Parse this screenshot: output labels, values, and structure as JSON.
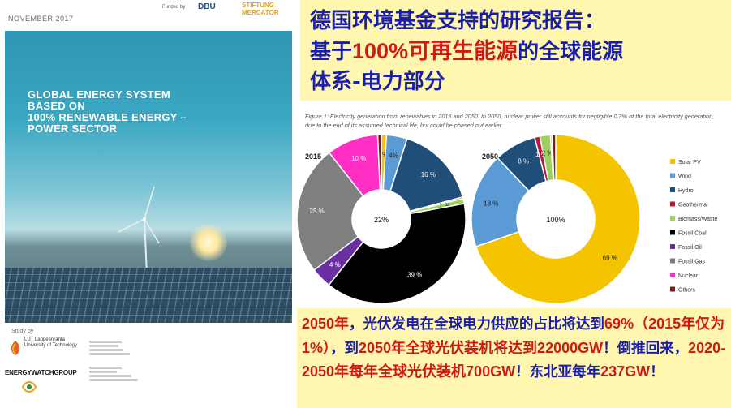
{
  "cover": {
    "date": "NOVEMBER 2017",
    "funded_by": "Funded by",
    "dbu": "DBU",
    "mercator": "STIFTUNG MERCATOR",
    "title_lines": [
      "GLOBAL ENERGY SYSTEM",
      "BASED ON",
      "100% RENEWABLE ENERGY –",
      "POWER SECTOR"
    ],
    "study_by": "Study by",
    "lut": "LUT Lappeenranta University of Technology",
    "ewg": "ENERGYWATCHGROUP"
  },
  "headline": {
    "part1": "德国环境基金支持的研究报告：",
    "part2a": "基于",
    "part2b": "100%可再生能源",
    "part2c": "的全球能源",
    "part3": "体系-电力部分"
  },
  "summary": {
    "s1": "2050年",
    "s2": "，光伏发电在全球电力供应的占比将达到",
    "s3": "69%（2015年仅为1%）",
    "s4": "，到",
    "s5": "2050年全球光伏装机将达到22000GW",
    "s6": "！倒推回来，",
    "s7": "2020-2050年每年全球光伏装机700GW",
    "s8": "！东北亚每年",
    "s9": "237GW",
    "s10": "！"
  },
  "chart_data": [
    {
      "type": "pie",
      "title": "2015",
      "center_label": "22%",
      "caption": "Figure 1: Electricity generation from renewables in 2015 and 2050. In 2050, nuclear power still accounts for negligible 0.3% of the total electricity generation, due to the end of its assumed technical life, but could be phased out earlier",
      "slices": [
        {
          "name": "Solar PV",
          "value": 1,
          "label": "1%",
          "color": "#f5c400"
        },
        {
          "name": "Wind",
          "value": 4,
          "label": "4%",
          "color": "#5b9bd5"
        },
        {
          "name": "Hydro",
          "value": 16,
          "label": "16 %",
          "color": "#1f4e79"
        },
        {
          "name": "Geothermal",
          "value": 0.3,
          "label": "",
          "color": "#c0143c"
        },
        {
          "name": "Biomass/Waste",
          "value": 1,
          "label": "1 %",
          "color": "#9bd15a"
        },
        {
          "name": "Fossil Coal",
          "value": 39,
          "label": "39 %",
          "color": "#000000"
        },
        {
          "name": "Fossil Oil",
          "value": 4,
          "label": "4 %",
          "color": "#6a2fa0"
        },
        {
          "name": "Fossil Gas",
          "value": 25,
          "label": "25 %",
          "color": "#7f7f7f"
        },
        {
          "name": "Nuclear",
          "value": 10,
          "label": "10 %",
          "color": "#ff2ec4"
        },
        {
          "name": "Others",
          "value": 0.7,
          "label": "",
          "color": "#7b1c1c"
        }
      ],
      "legend": [
        "Solar PV",
        "Wind",
        "Hydro",
        "Geothermal",
        "Biomass/Waste",
        "Fossil Coal",
        "Fossil Oil",
        "Fossil Gas",
        "Nuclear",
        "Others"
      ],
      "legend_placement": "right"
    },
    {
      "type": "pie",
      "title": "2050",
      "center_label": "100%",
      "slices": [
        {
          "name": "Solar PV",
          "value": 69,
          "label": "69 %",
          "color": "#f5c400"
        },
        {
          "name": "Wind",
          "value": 18,
          "label": "18 %",
          "color": "#5b9bd5"
        },
        {
          "name": "Hydro",
          "value": 8,
          "label": "8 %",
          "color": "#1f4e79"
        },
        {
          "name": "Geothermal",
          "value": 1,
          "label": "1 %",
          "color": "#c0143c"
        },
        {
          "name": "Biomass/Waste",
          "value": 2,
          "label": "2 %",
          "color": "#9bd15a"
        },
        {
          "name": "Fossil Coal",
          "value": 0,
          "label": "",
          "color": "#000000"
        },
        {
          "name": "Fossil Oil",
          "value": 0,
          "label": "",
          "color": "#6a2fa0"
        },
        {
          "name": "Fossil Gas",
          "value": 0,
          "label": "",
          "color": "#7f7f7f"
        },
        {
          "name": "Nuclear",
          "value": 0.3,
          "label": "",
          "color": "#ff2ec4"
        },
        {
          "name": "Others",
          "value": 0.7,
          "label": "",
          "color": "#7b1c1c"
        }
      ]
    }
  ]
}
